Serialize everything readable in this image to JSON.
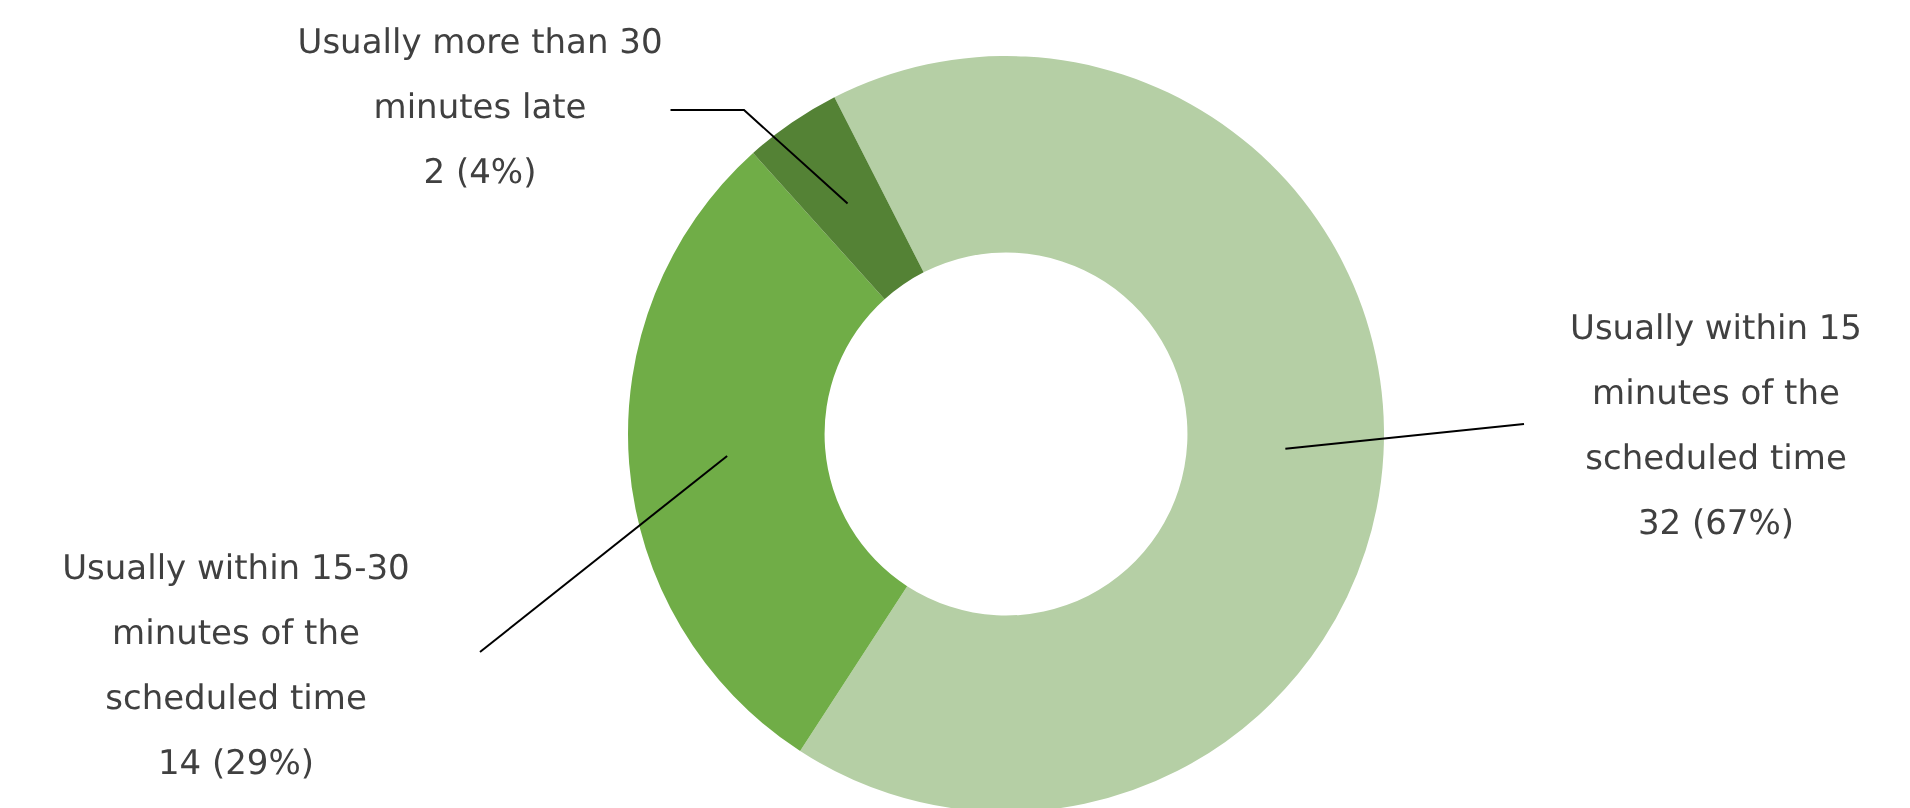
{
  "chart_data": {
    "type": "donut",
    "categories": [
      "Usually within 15 minutes of the scheduled time",
      "Usually within 15-30 minutes of the scheduled time",
      "Usually more than 30 minutes late"
    ],
    "values": [
      32,
      14,
      2
    ],
    "value_labels": [
      "32 (67%)",
      "14 (29%)",
      "2 (4%)"
    ],
    "colors": [
      "#b5cfa5",
      "#70ad47",
      "#548235"
    ],
    "legend": false
  }
}
